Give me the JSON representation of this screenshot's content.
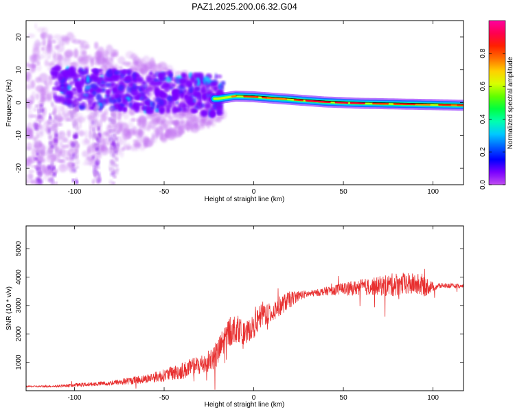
{
  "figure": {
    "title": "PAZ1.2025.200.06.32.G04"
  },
  "chart_data": [
    {
      "type": "heatmap",
      "title": "PAZ1.2025.200.06.32.G04",
      "xlabel": "Height of straight line (km)",
      "ylabel": "Frequency (Hz)",
      "xlim": [
        -127,
        117
      ],
      "ylim": [
        -25,
        25
      ],
      "xticks": [
        -100,
        -50,
        0,
        50,
        100
      ],
      "xtick_labels": [
        "-100",
        "-50",
        "0",
        "50",
        "100"
      ],
      "yticks": [
        -20,
        -10,
        0,
        10,
        20
      ],
      "ytick_labels": [
        "-20",
        "-10",
        "0",
        "10",
        "20"
      ],
      "grid": false,
      "colorbar": {
        "label": "Normalized spectral amplitude",
        "range": [
          0,
          1
        ],
        "ticks": [
          0.0,
          0.2,
          0.4,
          0.6,
          0.8
        ],
        "tick_labels": [
          "0.0",
          "0.2",
          "0.4",
          "0.6",
          "0.8"
        ],
        "colormap": [
          "#c04cf0",
          "#7a00ff",
          "#0000ff",
          "#0060ff",
          "#00c8ff",
          "#00ffb0",
          "#00ff40",
          "#60ff00",
          "#d8ff00",
          "#ffd000",
          "#ff7000",
          "#ff2000",
          "#ff0050",
          "#ff00a0"
        ]
      },
      "ridge": {
        "description_points": [
          [
            -20,
            1.2
          ],
          [
            -10,
            2.0
          ],
          [
            0,
            1.8
          ],
          [
            20,
            1.0
          ],
          [
            40,
            0.2
          ],
          [
            60,
            -0.2
          ],
          [
            80,
            -0.4
          ],
          [
            100,
            -0.6
          ],
          [
            117,
            -0.8
          ]
        ]
      }
    },
    {
      "type": "line",
      "xlabel": "Height of straight line (km)",
      "ylabel": "SNR (10 * v/v)",
      "xlim": [
        -127,
        117
      ],
      "ylim": [
        0,
        5800
      ],
      "xticks": [
        -100,
        -50,
        0,
        50,
        100
      ],
      "xtick_labels": [
        "-100",
        "-50",
        "0",
        "50",
        "100"
      ],
      "yticks": [
        1000,
        2000,
        3000,
        4000,
        5000
      ],
      "ytick_labels": [
        "1000",
        "2000",
        "3000",
        "4000",
        "5000"
      ],
      "grid": false,
      "line_color": "#e83030",
      "series": [
        {
          "x": [
            -127,
            -120,
            -110,
            -100,
            -90,
            -80,
            -70,
            -60,
            -50,
            -45,
            -40,
            -35,
            -30,
            -25,
            -20,
            -15,
            -10,
            -5,
            0,
            5,
            10,
            15,
            20,
            25,
            30,
            35,
            40,
            45,
            50,
            55,
            60,
            65,
            70,
            75,
            80,
            85,
            90,
            95,
            100,
            105,
            110,
            117
          ],
          "values": [
            150,
            150,
            160,
            200,
            230,
            270,
            340,
            420,
            540,
            620,
            700,
            800,
            900,
            1050,
            1300,
            2000,
            2200,
            2000,
            2250,
            2700,
            2750,
            3000,
            3200,
            3350,
            3400,
            3450,
            3500,
            3550,
            3600,
            3600,
            3650,
            3650,
            3700,
            3700,
            3750,
            3750,
            3750,
            3700,
            3650,
            3700,
            3700,
            3650
          ],
          "noise": [
            30,
            30,
            40,
            60,
            70,
            90,
            130,
            160,
            220,
            260,
            300,
            330,
            380,
            420,
            500,
            550,
            500,
            380,
            400,
            450,
            400,
            350,
            300,
            180,
            130,
            120,
            150,
            180,
            220,
            250,
            300,
            300,
            330,
            400,
            420,
            400,
            380,
            420,
            160,
            90,
            80,
            80
          ]
        }
      ]
    }
  ]
}
